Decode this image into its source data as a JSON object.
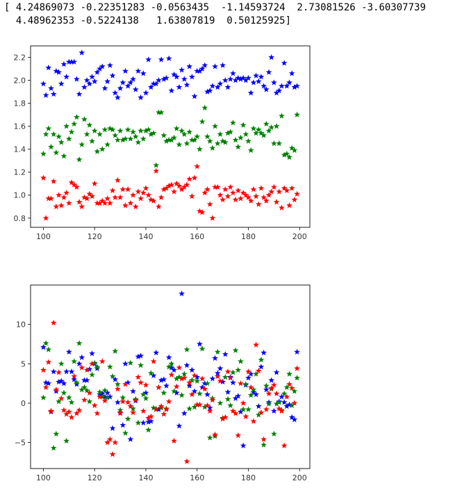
{
  "output": {
    "line1": "[ 4.24869073 -0.22351283 -0.0563435  -1.14593724  2.73081526 -3.60307739",
    "line2": "  4.48962353 -0.5224138   1.63807819  0.50125925]"
  },
  "colors": {
    "blue": "#0000ff",
    "green": "#008000",
    "red": "#ff0000"
  },
  "chart_data": [
    {
      "type": "scatter",
      "marker": "star",
      "title": "",
      "xlabel": "",
      "ylabel": "",
      "xlim": [
        95,
        204
      ],
      "ylim": [
        0.72,
        2.3
      ],
      "xticks": [
        100,
        120,
        140,
        160,
        180,
        200
      ],
      "yticks": [
        0.8,
        1.0,
        1.2,
        1.4,
        1.6,
        1.8,
        2.0,
        2.2
      ],
      "ytick_labels": [
        "0.8",
        "1.0",
        "1.2",
        "1.4",
        "1.6",
        "1.8",
        "2.0",
        "2.2"
      ],
      "grid": false,
      "x_start": 100,
      "series": [
        {
          "color": "blue",
          "values": [
            1.97,
            1.87,
            2.11,
            1.93,
            1.88,
            2.08,
            2.07,
            1.97,
            2.14,
            2.03,
            2.16,
            2.16,
            2.16,
            2.01,
            1.88,
            2.24,
            1.94,
            2.0,
            1.97,
            2.03,
            1.99,
            2.07,
            2.1,
            2.12,
            1.93,
            1.99,
            2.13,
            2.04,
            1.89,
            1.85,
            1.93,
            1.98,
            2.08,
            1.95,
            1.98,
            2.01,
            1.92,
            2.08,
            1.85,
            2.06,
            1.89,
            2.18,
            1.94,
            1.97,
            1.97,
            2.0,
            2.18,
            2.01,
            2.02,
            2.19,
            1.91,
            2.05,
            2.03,
            1.94,
            2.09,
            2.01,
            1.96,
            2.12,
            2.03,
            1.86,
            2.08,
            2.08,
            2.1,
            2.13,
            1.9,
            1.91,
            1.95,
            2.12,
            1.94,
            1.97,
            2.13,
            2.0,
            1.94,
            2.01,
            2.06,
            2.0,
            2.02,
            2.01,
            2.02,
            2.0,
            2.02,
            1.89,
            1.98,
            2.04,
            1.99,
            2.03,
            1.95,
            1.92,
            2.07,
            2.2,
            1.98,
            1.89,
            1.91,
            1.95,
            2.15,
            1.95,
            1.98,
            2.06,
            1.94,
            1.95
          ]
        },
        {
          "color": "green",
          "values": [
            1.36,
            1.53,
            1.58,
            1.42,
            1.53,
            1.37,
            1.51,
            1.46,
            1.34,
            1.6,
            1.49,
            1.55,
            1.62,
            1.68,
            1.31,
            1.44,
            1.66,
            1.53,
            1.61,
            1.47,
            1.56,
            1.38,
            1.53,
            1.4,
            1.57,
            1.44,
            1.58,
            1.57,
            1.52,
            1.48,
            1.56,
            1.48,
            1.49,
            1.57,
            1.49,
            1.55,
            1.51,
            1.46,
            1.56,
            1.49,
            1.56,
            1.57,
            1.53,
            1.54,
            1.26,
            1.72,
            1.72,
            1.52,
            1.47,
            1.48,
            1.48,
            1.5,
            1.58,
            1.44,
            1.56,
            1.53,
            1.45,
            1.55,
            1.48,
            1.48,
            1.51,
            1.4,
            1.64,
            1.76,
            1.51,
            1.47,
            1.41,
            1.6,
            1.45,
            1.53,
            1.47,
            1.46,
            1.54,
            1.55,
            1.63,
            1.48,
            1.42,
            1.5,
            1.61,
            1.53,
            1.47,
            1.39,
            1.58,
            1.54,
            1.57,
            1.54,
            1.52,
            1.62,
            1.56,
            1.59,
            1.45,
            1.6,
            1.45,
            1.69,
            1.35,
            1.36,
            1.33,
            1.41,
            1.39,
            1.7
          ]
        },
        {
          "color": "red",
          "values": [
            1.15,
            0.8,
            0.97,
            0.97,
            1.12,
            0.9,
            1.0,
            0.91,
            0.98,
            1.02,
            0.93,
            1.11,
            1.09,
            1.07,
            0.94,
            0.9,
            0.98,
            0.97,
            1.01,
            0.99,
            1.1,
            0.93,
            0.93,
            0.95,
            0.93,
            0.97,
            0.93,
            1.04,
            0.98,
            1.13,
            0.98,
            1.05,
            0.91,
            1.05,
            0.93,
            1.0,
            0.9,
            1.03,
            0.97,
            1.02,
            1.06,
            1.0,
            0.96,
            0.95,
            1.21,
            0.9,
            0.98,
            1.05,
            1.06,
            1.08,
            1.09,
            1.03,
            1.1,
            1.08,
            1.05,
            1.07,
            1.09,
            1.14,
            0.99,
            1.15,
            1.25,
            0.86,
            0.85,
            1.02,
            1.05,
            0.92,
            0.8,
            1.07,
            1.07,
            1.0,
            0.96,
            1.05,
            0.99,
            1.07,
            1.02,
            0.96,
            1.04,
            0.97,
            1.02,
            1.0,
            0.98,
            0.95,
            1.05,
            0.99,
            0.92,
            1.06,
            0.98,
            0.95,
            1.0,
            1.03,
            1.07,
            0.94,
            1.03,
            0.89,
            1.06,
            1.04,
            0.91,
            1.06,
            0.96,
            1.01
          ]
        }
      ]
    },
    {
      "type": "scatter",
      "marker": "star",
      "title": "",
      "xlabel": "",
      "ylabel": "",
      "xlim": [
        95,
        204
      ],
      "ylim": [
        -8.3,
        15.0
      ],
      "xticks": [
        100,
        120,
        140,
        160,
        180,
        200
      ],
      "yticks": [
        -5,
        0,
        5,
        10
      ],
      "ytick_labels": [
        "−5",
        "0",
        "5",
        "10"
      ],
      "grid": false,
      "x_start": 100,
      "series": [
        {
          "color": "blue",
          "values": [
            7.1,
            2.6,
            2.5,
            -1.1,
            4.0,
            1.5,
            2.7,
            2.8,
            2.5,
            4.0,
            6.5,
            4.0,
            3.0,
            2.4,
            5.0,
            5.8,
            2.9,
            2.9,
            4.3,
            6.3,
            5.0,
            4.4,
            1.1,
            1.2,
            0.8,
            1.3,
            0.8,
            -3.2,
            3.0,
            0.1,
            -1.2,
            -2.8,
            5.0,
            2.6,
            -4.6,
            1.5,
            0.3,
            5.9,
            6.0,
            -2.5,
            1.3,
            -2.4,
            -2.3,
            3.5,
            6.4,
            -0.8,
            2.9,
            3.0,
            2.2,
            5.8,
            4.5,
            4.2,
            1.3,
            -2.9,
            13.9,
            -1.3,
            4.8,
            2.2,
            4.2,
            1.5,
            3.3,
            7.5,
            2.0,
            2.5,
            1.1,
            -0.6,
            3.1,
            5.7,
            3.8,
            4.4,
            2.7,
            6.2,
            1.4,
            3.3,
            2.6,
            0.6,
            0.9,
            -1.1,
            -5.4,
            2.3,
            3.2,
            3.7,
            1.4,
            1.1,
            -0.4,
            4.6,
            6.4,
            1.7,
            0.1,
            2.9,
            -1.0,
            3.9,
            0.2,
            0.8,
            0.1,
            -0.4,
            -0.2,
            -1.8,
            -2.1,
            6.5
          ]
        },
        {
          "color": "green",
          "values": [
            0.7,
            7.6,
            6.8,
            -1.0,
            -5.7,
            -3.9,
            0.2,
            5.0,
            1.3,
            -4.8,
            0.7,
            0.1,
            5.3,
            2.6,
            7.6,
            1.7,
            2.0,
            1.6,
            0.2,
            3.6,
            5.1,
            4.6,
            1.4,
            0.8,
            1.6,
            0.7,
            4.6,
            3.4,
            6.6,
            2.4,
            -0.9,
            0.7,
            -3.8,
            -2.0,
            5.1,
            -0.7,
            0.5,
            -2.5,
            4.8,
            1.1,
            0.6,
            -3.4,
            3.8,
            -0.6,
            -0.7,
            2.0,
            -0.6,
            1.3,
            -0.7,
            4.6,
            5.0,
            1.5,
            3.1,
            3.3,
            1.0,
            3.7,
            6.8,
            -0.7,
            2.9,
            -0.5,
            2.8,
            1.2,
            6.9,
            -0.5,
            2.5,
            -4.4,
            0.6,
            -4.2,
            6.5,
            0.0,
            -1.9,
            3.3,
            0.5,
            -0.3,
            3.9,
            6.7,
            4.2,
            5.3,
            -0.8,
            2.4,
            -0.8,
            1.0,
            1.7,
            3.7,
            -1.5,
            5.5,
            -5.3,
            2.2,
            -0.1,
            1.8,
            -3.9,
            -0.1,
            0.1,
            -0.9,
            1.2,
            2.0,
            3.7,
            -0.3,
            1.5,
            3.2
          ]
        },
        {
          "color": "red",
          "values": [
            4.2,
            2.0,
            5.2,
            -1.0,
            10.2,
            1.7,
            3.9,
            0.6,
            -0.9,
            -1.4,
            -1.1,
            -1.8,
            3.4,
            -1.3,
            -0.9,
            4.5,
            0.4,
            4.2,
            1.3,
            5.0,
            -0.3,
            -1.3,
            0.8,
            5.3,
            0.3,
            -5.0,
            -4.6,
            -6.5,
            -5.0,
            1.8,
            -1.3,
            0.2,
            2.4,
            0.1,
            -0.4,
            -1.2,
            0.4,
            3.3,
            2.6,
            -1.0,
            2.3,
            -1.9,
            -1.7,
            5.3,
            -0.8,
            2.0,
            -0.4,
            -1.4,
            -0.8,
            0.2,
            3.6,
            -4.8,
            2.1,
            4.5,
            3.1,
            3.2,
            -7.4,
            2.6,
            1.1,
            3.5,
            -0.2,
            -0.2,
            3.1,
            1.8,
            -0.3,
            -1.0,
            0.4,
            -4.0,
            3.4,
            2.8,
            -2.0,
            -1.8,
            4.0,
            3.2,
            -1.0,
            -1.3,
            -4.1,
            2.5,
            0.0,
            -1.7,
            4.0,
            2.0,
            -2.3,
            7.4,
            4.1,
            -1.2,
            -4.6,
            -0.8,
            1.2,
            1.9,
            2.3,
            1.2,
            -0.7,
            -1.0,
            -5.4,
            0.8,
            2.4,
            1.9,
            0.0,
            4.4
          ]
        }
      ]
    }
  ]
}
